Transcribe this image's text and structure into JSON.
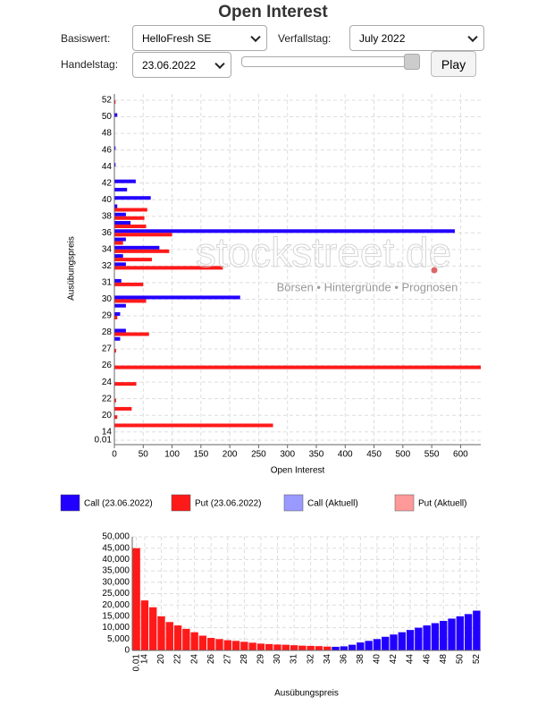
{
  "header": {
    "title": "Open Interest"
  },
  "controls": {
    "basiswert_label": "Basiswert:",
    "basiswert_value": "HelloFresh SE",
    "verfallstag_label": "Verfallstag:",
    "verfallstag_value": "July 2022",
    "handelstag_label": "Handelstag:",
    "handelstag_value": "23.06.2022",
    "play": "Play"
  },
  "watermark": {
    "text": "stockstreet.de",
    "tagline": "Börsen • Hintergründe • Prognosen"
  },
  "chart_data": [
    {
      "type": "hbar",
      "x_label": "Open Interest",
      "y_label": "Ausübungspreis",
      "categories": [
        "0.01",
        "14",
        null,
        "20",
        null,
        "22",
        null,
        "24",
        null,
        "26",
        null,
        "27",
        null,
        "28",
        null,
        "29",
        null,
        "30",
        null,
        "31",
        null,
        "32",
        null,
        "34",
        null,
        "36",
        null,
        "38",
        null,
        "40",
        null,
        "42",
        null,
        "44",
        null,
        "46",
        null,
        "48",
        null,
        "50",
        null,
        "52"
      ],
      "series": [
        {
          "name": "Call (23.06.2022)",
          "color": "#2200ff",
          "values": [
            0,
            0,
            0,
            0,
            0,
            0,
            0,
            0,
            0,
            0,
            0,
            0,
            10,
            20,
            0,
            10,
            20,
            218,
            0,
            12,
            0,
            20,
            15,
            78,
            20,
            590,
            28,
            20,
            5,
            63,
            22,
            37,
            0,
            2,
            0,
            2,
            0,
            0,
            0,
            5,
            0,
            0
          ]
        },
        {
          "name": "Put (23.06.2022)",
          "color": "#ff1a1a",
          "values": [
            0,
            0,
            275,
            5,
            30,
            3,
            0,
            38,
            0,
            640,
            0,
            3,
            0,
            60,
            0,
            5,
            0,
            55,
            0,
            50,
            0,
            188,
            65,
            95,
            15,
            100,
            55,
            52,
            57,
            0,
            0,
            0,
            0,
            0,
            0,
            0,
            0,
            0,
            0,
            0,
            0,
            2
          ]
        },
        {
          "name": "Call (Aktuell)",
          "color": "#9999ff"
        },
        {
          "name": "Put (Aktuell)",
          "color": "#ff9999"
        }
      ],
      "xlim": [
        0,
        635
      ],
      "xticks": [
        0,
        50,
        100,
        150,
        200,
        250,
        300,
        350,
        400,
        450,
        500,
        550,
        600
      ],
      "grid": true
    },
    {
      "type": "bar",
      "x_label": "Ausübungspreis",
      "categories": [
        "0.01",
        "14",
        null,
        "20",
        null,
        "22",
        null,
        "24",
        null,
        "26",
        null,
        "27",
        null,
        "28",
        null,
        "29",
        null,
        "30",
        null,
        "31",
        null,
        "32",
        null,
        "34",
        null,
        "36",
        null,
        "38",
        null,
        "40",
        null,
        "42",
        null,
        "44",
        null,
        "46",
        null,
        "48",
        null,
        "50",
        null,
        "52"
      ],
      "values": [
        45000,
        22000,
        19000,
        15000,
        12500,
        11000,
        9500,
        8000,
        6500,
        5500,
        5000,
        4500,
        4200,
        3800,
        3400,
        3000,
        2800,
        2600,
        2500,
        2300,
        2100,
        2000,
        1900,
        1700,
        1600,
        1800,
        2500,
        3500,
        4200,
        5000,
        6000,
        7000,
        8000,
        9000,
        10000,
        11000,
        12000,
        13000,
        14000,
        15000,
        16000,
        17500
      ],
      "colors": [
        "#ff1a1a",
        "#ff1a1a",
        "#ff1a1a",
        "#ff1a1a",
        "#ff1a1a",
        "#ff1a1a",
        "#ff1a1a",
        "#ff1a1a",
        "#ff1a1a",
        "#ff1a1a",
        "#ff1a1a",
        "#ff1a1a",
        "#ff1a1a",
        "#ff1a1a",
        "#ff1a1a",
        "#ff1a1a",
        "#ff1a1a",
        "#ff1a1a",
        "#ff1a1a",
        "#ff1a1a",
        "#ff1a1a",
        "#ff1a1a",
        "#ff1a1a",
        "#ff1a1a",
        "#2200ff",
        "#2200ff",
        "#2200ff",
        "#2200ff",
        "#2200ff",
        "#2200ff",
        "#2200ff",
        "#2200ff",
        "#2200ff",
        "#2200ff",
        "#2200ff",
        "#2200ff",
        "#2200ff",
        "#2200ff",
        "#2200ff",
        "#2200ff",
        "#2200ff",
        "#2200ff"
      ],
      "ylim": [
        0,
        50000
      ],
      "yticks": [
        0,
        {
          "value": 5000,
          "label": "5,000"
        },
        {
          "value": 10000,
          "label": "10,000"
        },
        {
          "value": 15000,
          "label": "15,000"
        },
        {
          "value": 20000,
          "label": "20,000"
        },
        {
          "value": 25000,
          "label": "25,000"
        },
        {
          "value": 30000,
          "label": "30,000"
        },
        {
          "value": 35000,
          "label": "35,000"
        },
        {
          "value": 40000,
          "label": "40,000"
        },
        {
          "value": 45000,
          "label": "45,000"
        },
        {
          "value": 50000,
          "label": "50,000"
        }
      ],
      "grid": true
    }
  ]
}
